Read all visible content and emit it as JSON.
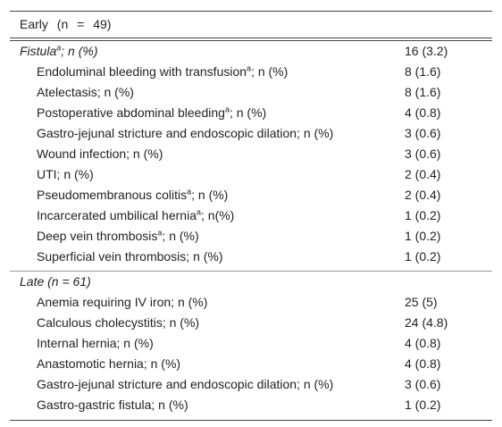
{
  "table": {
    "header": "Early (n = 49)",
    "sections": [
      {
        "title": {
          "text": "Fistula",
          "sup": "a",
          "end": "; n (%)"
        },
        "value": "16 (3.2)",
        "rows": [
          {
            "label": {
              "text": "Endoluminal bleeding with transfusion",
              "sup": "a",
              "end": "; n (%)"
            },
            "value": "8 (1.6)"
          },
          {
            "label": {
              "text": "Atelectasis; n (%)"
            },
            "value": "8 (1.6)"
          },
          {
            "label": {
              "text": "Postoperative abdominal bleeding",
              "sup": "a",
              "end": "; n (%)"
            },
            "value": "4 (0.8)"
          },
          {
            "label": {
              "text": "Gastro-jejunal stricture and endoscopic dilation; n (%)"
            },
            "value": "3 (0.6)"
          },
          {
            "label": {
              "text": "Wound infection; n (%)"
            },
            "value": "3 (0.6)"
          },
          {
            "label": {
              "text": "UTI; n (%)"
            },
            "value": "2 (0.4)"
          },
          {
            "label": {
              "text": "Pseudomembranous colitis",
              "sup": "a",
              "end": "; n (%)"
            },
            "value": "2 (0.4)"
          },
          {
            "label": {
              "text": "Incarcerated umbilical hernia",
              "sup": "a",
              "end": "; n(%)"
            },
            "value": "1 (0.2)"
          },
          {
            "label": {
              "text": "Deep vein thrombosis",
              "sup": "a",
              "end": "; n (%)"
            },
            "value": "1 (0.2)"
          },
          {
            "label": {
              "text": "Superficial vein thrombosis; n (%)"
            },
            "value": "1 (0.2)"
          }
        ]
      },
      {
        "title": {
          "text": "Late (n = 61)"
        },
        "rows": [
          {
            "label": {
              "text": "Anemia requiring IV iron; n (%)"
            },
            "value": "25 (5)"
          },
          {
            "label": {
              "text": "Calculous cholecystitis; n (%)"
            },
            "value": "24 (4.8)"
          },
          {
            "label": {
              "text": "Internal hernia; n (%)"
            },
            "value": "4 (0.8)"
          },
          {
            "label": {
              "text": "Anastomotic hernia; n (%)"
            },
            "value": "4 (0.8)"
          },
          {
            "label": {
              "text": "Gastro-jejunal stricture and endoscopic dilation; n (%)"
            },
            "value": "3 (0.6)"
          },
          {
            "label": {
              "text": "Gastro-gastric fistula; n (%)"
            },
            "value": "1 (0.2)"
          }
        ]
      }
    ]
  }
}
